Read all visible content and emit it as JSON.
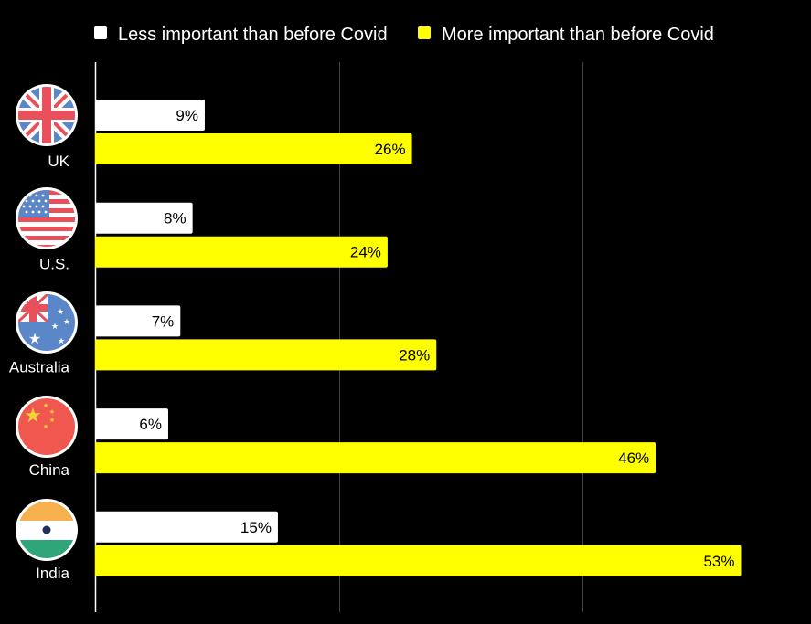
{
  "chart_data": {
    "type": "bar",
    "orientation": "horizontal",
    "categories": [
      "UK",
      "U.S.",
      "Australia",
      "China",
      "India"
    ],
    "series": [
      {
        "name": "Less important than before Covid",
        "color": "#ffffff",
        "values": [
          9,
          8,
          7,
          6,
          15
        ]
      },
      {
        "name": "More important than before Covid",
        "color": "#ffff00",
        "values": [
          26,
          24,
          28,
          46,
          53
        ]
      }
    ],
    "value_suffix": "%",
    "xlim": [
      0,
      60
    ],
    "gridlines_at": [
      20,
      40
    ],
    "grid": true,
    "legend_position": "top",
    "category_icons": [
      "uk-flag-icon",
      "us-flag-icon",
      "australia-flag-icon",
      "china-flag-icon",
      "india-flag-icon"
    ]
  }
}
